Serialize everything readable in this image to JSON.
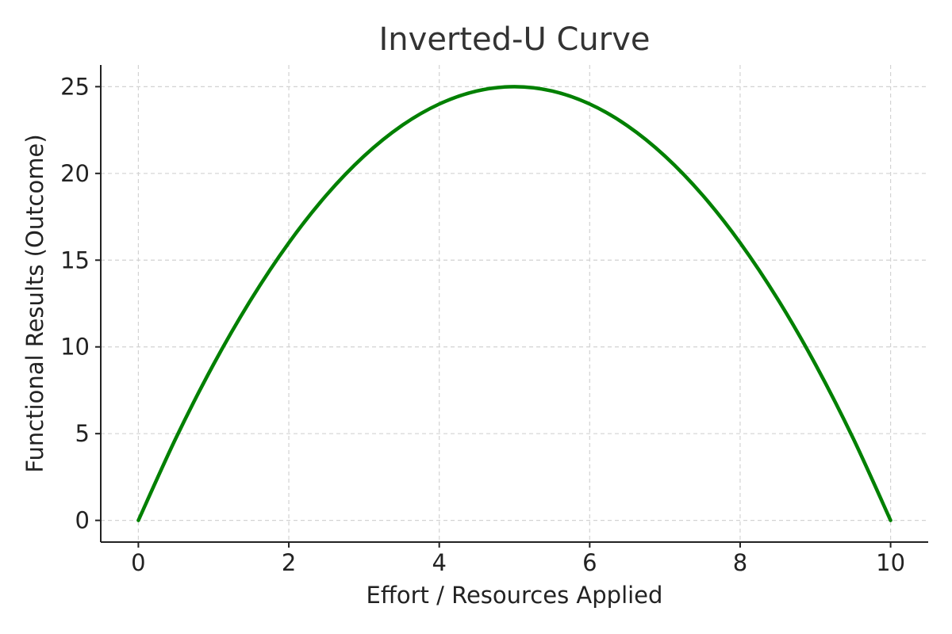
{
  "chart_data": {
    "type": "line",
    "title": "Inverted-U Curve",
    "xlabel": "Effort / Resources Applied",
    "ylabel": "Functional Results (Outcome)",
    "xlim": [
      -0.5,
      10.5
    ],
    "ylim": [
      -1.25,
      26.25
    ],
    "x_ticks": [
      0,
      2,
      4,
      6,
      8,
      10
    ],
    "y_ticks": [
      0,
      5,
      10,
      15,
      20,
      25
    ],
    "x_tick_labels": [
      "0",
      "2",
      "4",
      "6",
      "8",
      "10"
    ],
    "y_tick_labels": [
      "0",
      "5",
      "10",
      "15",
      "20",
      "25"
    ],
    "grid": true,
    "series": [
      {
        "color": "#008000",
        "x": [
          0,
          0.5,
          1,
          1.5,
          2,
          2.5,
          3,
          3.5,
          4,
          4.5,
          5,
          5.5,
          6,
          6.5,
          7,
          7.5,
          8,
          8.5,
          9,
          9.5,
          10
        ],
        "y": [
          0,
          4.75,
          9,
          12.75,
          16,
          18.75,
          21,
          22.75,
          24,
          24.75,
          25,
          24.75,
          24,
          22.75,
          21,
          18.75,
          16,
          12.75,
          9,
          4.75,
          0
        ]
      }
    ]
  }
}
